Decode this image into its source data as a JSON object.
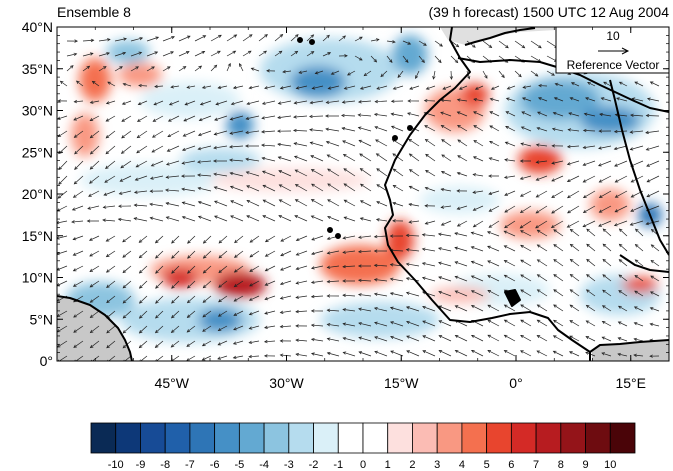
{
  "header": {
    "left_title": "Ensemble 8",
    "right_title": "(39 h forecast) 1500 UTC 12 Aug 2004"
  },
  "reference_vector": {
    "magnitude_label": "10",
    "caption": "Reference Vector"
  },
  "axes": {
    "y_ticks": [
      "40°N",
      "35°N",
      "30°N",
      "25°N",
      "20°N",
      "15°N",
      "10°N",
      "5°N",
      "0°"
    ],
    "x_ticks": [
      "45°W",
      "30°W",
      "15°W",
      "0°",
      "15°E"
    ]
  },
  "colorbar": {
    "tick_labels": [
      "-10",
      "-9",
      "-8",
      "-7",
      "-6",
      "-5",
      "-4",
      "-3",
      "-2",
      "-1",
      "0",
      "1",
      "2",
      "3",
      "4",
      "5",
      "6",
      "7",
      "8",
      "9",
      "10"
    ],
    "colors": [
      "#0a2a55",
      "#0d3878",
      "#174b96",
      "#2060aa",
      "#2e75b6",
      "#4590c6",
      "#63a9d2",
      "#8cc4e0",
      "#b5dcee",
      "#daf0f8",
      "#ffffff",
      "#ffffff",
      "#fde0de",
      "#fbbcb4",
      "#f99882",
      "#f4704f",
      "#e8452e",
      "#d42a26",
      "#b71c20",
      "#941419",
      "#6e0c10",
      "#4a0408"
    ]
  },
  "map": {
    "lat_range": [
      0,
      40
    ],
    "lon_range": [
      -60,
      20
    ],
    "land_mask_color": "#c8c8c8",
    "coast_color": "#000000"
  }
}
